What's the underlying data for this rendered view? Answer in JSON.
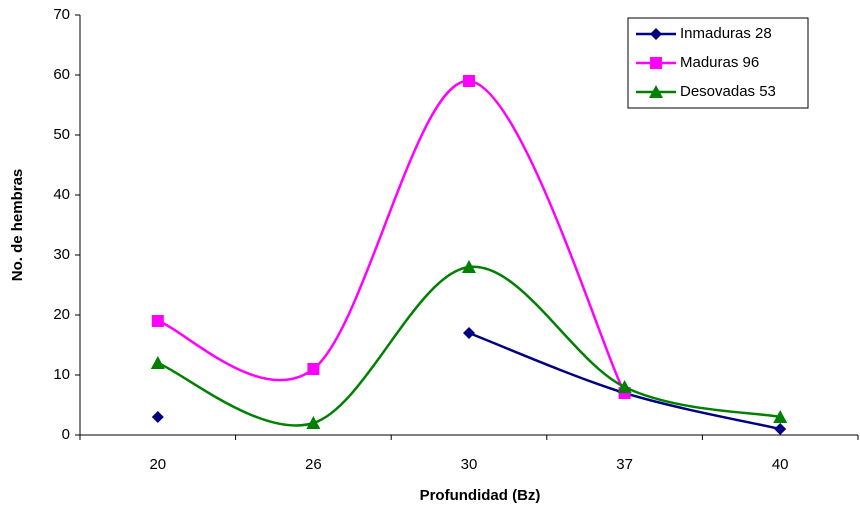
{
  "chart_data": {
    "type": "line",
    "x_label": "Profundidad (Bz)",
    "y_label": "No. de hembras",
    "categories": [
      "20",
      "26",
      "30",
      "37",
      "40"
    ],
    "series": [
      {
        "name": "Inmaduras 28",
        "color": "#000080",
        "marker": "diamond",
        "values": [
          3,
          null,
          17,
          7,
          1
        ]
      },
      {
        "name": "Maduras 96",
        "color": "#ff00ff",
        "marker": "square",
        "values": [
          19,
          11,
          59,
          7,
          null
        ]
      },
      {
        "name": "Desovadas 53",
        "color": "#008000",
        "marker": "triangle",
        "values": [
          12,
          2,
          28,
          8,
          3
        ]
      }
    ],
    "ylim": [
      0,
      70
    ],
    "yticks": [
      0,
      10,
      20,
      30,
      40,
      50,
      60,
      70
    ],
    "smooth": true,
    "grid": false,
    "legend": "top-right"
  }
}
